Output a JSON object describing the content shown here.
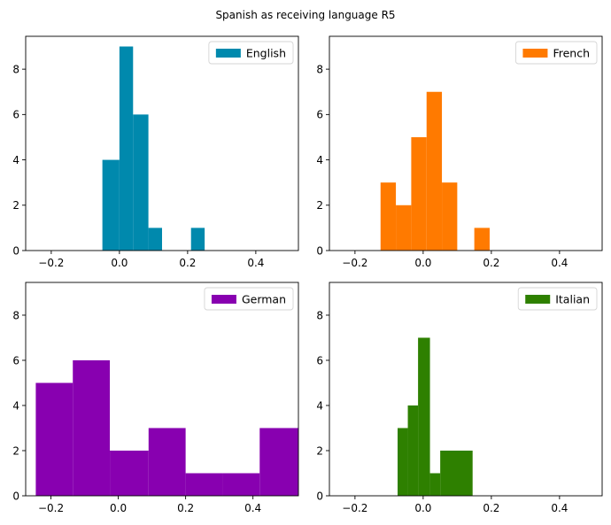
{
  "figure": {
    "title": "Spanish as receiving language R5"
  },
  "chart_data": [
    {
      "type": "bar",
      "histogram": true,
      "series": [
        {
          "name": "English",
          "color": "#0089ad",
          "bins": [
            {
              "x0": -0.05,
              "x1": 0.0,
              "count": 4
            },
            {
              "x0": 0.0,
              "x1": 0.04,
              "count": 9
            },
            {
              "x0": 0.04,
              "x1": 0.085,
              "count": 6
            },
            {
              "x0": 0.085,
              "x1": 0.125,
              "count": 1
            },
            {
              "x0": 0.125,
              "x1": 0.21,
              "count": 0
            },
            {
              "x0": 0.21,
              "x1": 0.25,
              "count": 1
            }
          ]
        }
      ],
      "xlim": [
        -0.275,
        0.525
      ],
      "ylim": [
        0,
        9.45
      ],
      "xticks": [
        -0.2,
        0.0,
        0.2,
        0.4
      ],
      "xtick_labels": [
        "−0.2",
        "0.0",
        "0.2",
        "0.4"
      ],
      "yticks": [
        0,
        2,
        4,
        6,
        8
      ],
      "ytick_labels": [
        "0",
        "2",
        "4",
        "6",
        "8"
      ],
      "legend": "top-right",
      "grid": false
    },
    {
      "type": "bar",
      "histogram": true,
      "series": [
        {
          "name": "French",
          "color": "#ff7a00",
          "bins": [
            {
              "x0": -0.125,
              "x1": -0.08,
              "count": 3
            },
            {
              "x0": -0.08,
              "x1": -0.035,
              "count": 2
            },
            {
              "x0": -0.035,
              "x1": 0.01,
              "count": 5
            },
            {
              "x0": 0.01,
              "x1": 0.055,
              "count": 7
            },
            {
              "x0": 0.055,
              "x1": 0.1,
              "count": 3
            },
            {
              "x0": 0.1,
              "x1": 0.15,
              "count": 0
            },
            {
              "x0": 0.15,
              "x1": 0.195,
              "count": 1
            }
          ]
        }
      ],
      "xlim": [
        -0.275,
        0.525
      ],
      "ylim": [
        0,
        9.45
      ],
      "xticks": [
        -0.2,
        0.0,
        0.2,
        0.4
      ],
      "xtick_labels": [
        "−0.2",
        "0.0",
        "0.2",
        "0.4"
      ],
      "yticks": [
        0,
        2,
        4,
        6,
        8
      ],
      "ytick_labels": [
        "0",
        "2",
        "4",
        "6",
        "8"
      ],
      "legend": "top-right",
      "grid": false
    },
    {
      "type": "bar",
      "histogram": true,
      "series": [
        {
          "name": "German",
          "color": "#8800b0",
          "bins": [
            {
              "x0": -0.245,
              "x1": -0.135,
              "count": 5
            },
            {
              "x0": -0.135,
              "x1": -0.025,
              "count": 6
            },
            {
              "x0": -0.025,
              "x1": 0.09,
              "count": 2
            },
            {
              "x0": 0.09,
              "x1": 0.2,
              "count": 3
            },
            {
              "x0": 0.2,
              "x1": 0.31,
              "count": 1
            },
            {
              "x0": 0.31,
              "x1": 0.42,
              "count": 1
            },
            {
              "x0": 0.42,
              "x1": 0.535,
              "count": 3
            }
          ]
        }
      ],
      "xlim": [
        -0.275,
        0.535
      ],
      "ylim": [
        0,
        9.45
      ],
      "xticks": [
        -0.2,
        0.0,
        0.2,
        0.4
      ],
      "xtick_labels": [
        "−0.2",
        "0.0",
        "0.2",
        "0.4"
      ],
      "yticks": [
        0,
        2,
        4,
        6,
        8
      ],
      "ytick_labels": [
        "0",
        "2",
        "4",
        "6",
        "8"
      ],
      "legend": "top-right",
      "grid": false
    },
    {
      "type": "bar",
      "histogram": true,
      "series": [
        {
          "name": "Italian",
          "color": "#2e8000",
          "bins": [
            {
              "x0": -0.075,
              "x1": -0.045,
              "count": 3
            },
            {
              "x0": -0.045,
              "x1": -0.015,
              "count": 4
            },
            {
              "x0": -0.015,
              "x1": 0.02,
              "count": 7
            },
            {
              "x0": 0.02,
              "x1": 0.05,
              "count": 1
            },
            {
              "x0": 0.05,
              "x1": 0.145,
              "count": 2
            }
          ]
        }
      ],
      "xlim": [
        -0.275,
        0.525
      ],
      "ylim": [
        0,
        9.45
      ],
      "xticks": [
        -0.2,
        0.0,
        0.2,
        0.4
      ],
      "xtick_labels": [
        "−0.2",
        "0.0",
        "0.2",
        "0.4"
      ],
      "yticks": [
        0,
        2,
        4,
        6,
        8
      ],
      "ytick_labels": [
        "0",
        "2",
        "4",
        "6",
        "8"
      ],
      "legend": "top-right",
      "grid": false
    }
  ]
}
